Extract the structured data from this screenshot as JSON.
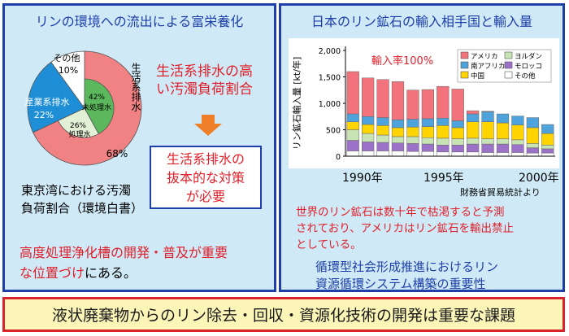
{
  "left": {
    "title": "リンの環境への流出による富栄養化",
    "pie": {
      "slices": [
        {
          "label": "生活系排水",
          "percent": 68,
          "percent_label": "68%",
          "color": "#f08283"
        },
        {
          "label": "産業系排水",
          "percent": 22,
          "percent_label": "22%",
          "color": "#1e8fd6"
        },
        {
          "label": "その他",
          "percent": 10,
          "percent_label": "10%",
          "color": "#ffffff"
        }
      ],
      "inner": [
        {
          "label": "未処理水",
          "percent": 42,
          "percent_label": "42%",
          "color": "#5cb85c"
        },
        {
          "label": "処理水",
          "percent": 26,
          "percent_label": "26%",
          "color": "#e2f1d6"
        }
      ]
    },
    "source_line1": "東京湾における汚濁",
    "source_line2": "負荷割合（環境白書）",
    "highlight_line1": "生活系排水の高",
    "highlight_line2": "い汚濁負荷割合",
    "arrow_icon": "down-arrow-icon",
    "box_line1": "生活系排水の",
    "box_line2": "抜本的な対策",
    "box_line3": "が必要",
    "bottom_line1": "高度処理浄化槽の開発・普及が重要",
    "bottom_line2a": "な位置づけ",
    "bottom_line2b": "にある。"
  },
  "right": {
    "title": "日本のリン鉱石の輸入相手国と輸入量",
    "note1": "世界のリン鉱石は数十年で枯渇すると予測",
    "note2": "されており、アメリカはリン鉱石を輸出禁止",
    "note3": "としている。",
    "conclusion1": "循環型社会形成推進におけるリン",
    "conclusion2": "資源循環システム構築の重要性"
  },
  "banner": "液状廃棄物からのリン除去・回収・資源化技術の開発は重要な課題",
  "chart_data": {
    "type": "bar",
    "stacked": true,
    "annotation": "輸入率100%",
    "ylabel": "リン鉱石輸入量 [kt/年]",
    "ylim": [
      0,
      2000
    ],
    "yticks": [
      "0",
      "500",
      "1,000",
      "1,500",
      "2,000"
    ],
    "xtick_labels": [
      "1990年",
      "1995年",
      "2000年"
    ],
    "source": "財務省貿易統計より",
    "categories": [
      "1989",
      "1990",
      "1991",
      "1992",
      "1993",
      "1994",
      "1995",
      "1996",
      "1997",
      "1998",
      "1999",
      "2000",
      "2001",
      "2002"
    ],
    "series": [
      {
        "name": "その他",
        "color": "#ffffff",
        "values": [
          100,
          100,
          100,
          100,
          90,
          90,
          80,
          80,
          80,
          70,
          70,
          70,
          60,
          60
        ]
      },
      {
        "name": "モロッコ",
        "color": "#9b72c8",
        "values": [
          200,
          170,
          160,
          150,
          150,
          140,
          130,
          130,
          150,
          160,
          160,
          150,
          100,
          80
        ]
      },
      {
        "name": "ヨルダン",
        "color": "#c9e4b4",
        "values": [
          200,
          160,
          140,
          120,
          130,
          120,
          130,
          120,
          110,
          100,
          100,
          90,
          80,
          70
        ]
      },
      {
        "name": "中国",
        "color": "#ffd400",
        "values": [
          150,
          170,
          180,
          170,
          180,
          210,
          240,
          210,
          310,
          320,
          300,
          280,
          300,
          220
        ]
      },
      {
        "name": "南アフリカ",
        "color": "#4ea3dc",
        "values": [
          150,
          150,
          150,
          150,
          150,
          150,
          140,
          130,
          150,
          190,
          170,
          170,
          190,
          170
        ]
      },
      {
        "name": "アメリカ",
        "color": "#f2737b",
        "values": [
          800,
          730,
          720,
          720,
          550,
          550,
          600,
          600,
          60,
          10,
          0,
          0,
          0,
          0
        ]
      }
    ]
  }
}
